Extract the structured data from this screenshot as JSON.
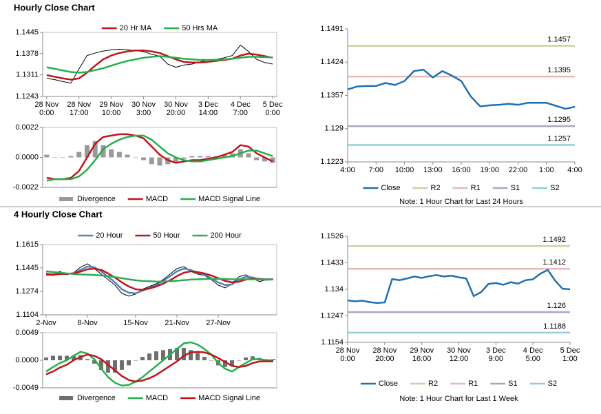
{
  "chart_data": [
    {
      "type": "line",
      "title": "Hourly Close Chart",
      "categories": [
        [
          "28 Nov",
          "0:00"
        ],
        null,
        null,
        null,
        [
          "28 Nov",
          "17:00"
        ],
        null,
        null,
        null,
        [
          "29 Nov",
          "10:00"
        ],
        null,
        null,
        null,
        [
          "30 Nov",
          "3:00"
        ],
        null,
        null,
        null,
        [
          "30 Nov",
          "20:00"
        ],
        null,
        null,
        null,
        [
          "3 Dec",
          "14:00"
        ],
        null,
        null,
        null,
        [
          "4 Dec",
          "7:00"
        ],
        null,
        null,
        null,
        [
          "5 Dec",
          "0:00"
        ]
      ],
      "ylim": [
        1.1243,
        1.1445
      ],
      "yticks": [
        1.1243,
        1.1311,
        1.1378,
        1.1445
      ],
      "grid": false,
      "series": [
        {
          "color": "#000000",
          "values": [
            1.13,
            1.1296,
            1.129,
            1.1285,
            1.133,
            1.1372,
            1.138,
            1.1386,
            1.139,
            1.1392,
            1.139,
            1.1388,
            1.1384,
            1.1376,
            1.137,
            1.1345,
            1.1335,
            1.1342,
            1.1345,
            1.1352,
            1.1358,
            1.136,
            1.1365,
            1.1372,
            1.1405,
            1.1385,
            1.136,
            1.135,
            1.1345
          ]
        },
        {
          "name": "20 Hr MA",
          "color": "#c0141b",
          "values": [
            1.131,
            1.1305,
            1.13,
            1.1296,
            1.13,
            1.1318,
            1.134,
            1.136,
            1.1372,
            1.138,
            1.1385,
            1.1388,
            1.1388,
            1.1385,
            1.138,
            1.137,
            1.136,
            1.1352,
            1.135,
            1.135,
            1.1352,
            1.1355,
            1.1358,
            1.1362,
            1.1372,
            1.1378,
            1.1375,
            1.137,
            1.1365
          ]
        },
        {
          "name": "50 Hrs MA",
          "color": "#22b04b",
          "values": [
            1.1335,
            1.133,
            1.1325,
            1.132,
            1.1318,
            1.132,
            1.1326,
            1.1332,
            1.134,
            1.1348,
            1.1355,
            1.136,
            1.1365,
            1.1368,
            1.137,
            1.1368,
            1.1365,
            1.1362,
            1.136,
            1.1358,
            1.1358,
            1.1358,
            1.136,
            1.1362,
            1.1365,
            1.1368,
            1.1368,
            1.1367,
            1.1366
          ]
        }
      ]
    },
    {
      "type": "line",
      "categories": [
        null,
        null,
        null,
        null,
        null,
        null,
        null,
        null,
        null,
        null,
        null,
        null,
        null,
        null,
        null,
        null,
        null,
        null,
        null,
        null,
        null,
        null,
        null,
        null,
        null,
        null,
        null,
        null,
        null
      ],
      "ylim": [
        -0.0022,
        0.0022
      ],
      "yticks": [
        {
          "value": -0.0022,
          "label": "-0.0022"
        },
        {
          "value": 0,
          "label": "0.0000"
        },
        {
          "value": 0.0022,
          "label": "0.0022"
        }
      ],
      "grid": false,
      "series": [
        {
          "name": "Divergence",
          "style": "bar",
          "color": "#9a9a9a",
          "values": [
            0.0002,
            0,
            0,
            0.0001,
            0.0004,
            0.0009,
            0.0012,
            0.0009,
            0.0006,
            0.0004,
            0.0002,
            0,
            -0.0002,
            -0.0005,
            -0.0006,
            -0.0005,
            -0.0004,
            -0.0001,
            0.0001,
            0.0001,
            0.0001,
            0.0001,
            0.0002,
            0.0003,
            0.0006,
            0.0003,
            -0.0002,
            -0.0003,
            -0.0004
          ]
        },
        {
          "name": "MACD",
          "color": "#c0141b",
          "values": [
            -0.0015,
            -0.0016,
            -0.0016,
            -0.0015,
            -0.001,
            0,
            0.001,
            0.0015,
            0.0016,
            0.0017,
            0.0017,
            0.0016,
            0.0014,
            0.0008,
            0.0002,
            -0.0002,
            -0.0004,
            -0.0003,
            -0.0002,
            -0.0002,
            -0.0001,
            0,
            0.0002,
            0.0004,
            0.0009,
            0.0008,
            0.0003,
            0,
            -0.0003
          ]
        },
        {
          "name": "MACD Signal Line",
          "color": "#22b04b",
          "values": [
            -0.0017,
            -0.0016,
            -0.0016,
            -0.0016,
            -0.0014,
            -0.0009,
            -0.0002,
            0.0006,
            0.001,
            0.0013,
            0.0015,
            0.0016,
            0.0016,
            0.0013,
            0.0008,
            0.0003,
            0,
            -0.0002,
            -0.0003,
            -0.0003,
            -0.0002,
            -0.0001,
            0,
            0.0001,
            0.0003,
            0.0005,
            0.0005,
            0.0003,
            0.0001
          ]
        }
      ]
    },
    {
      "type": "line",
      "note": "Note: 1 Hour Chart for Last 24 Hours",
      "categories": [
        "4:00",
        null,
        null,
        "7:00",
        null,
        null,
        "10:00",
        null,
        null,
        "13:00",
        null,
        null,
        "16:00",
        null,
        null,
        "19:00",
        null,
        null,
        "22:00",
        null,
        null,
        "1:00",
        null,
        null,
        "4:00"
      ],
      "ylim": [
        1.1223,
        1.1491
      ],
      "yticks": [
        1.1223,
        1.129,
        1.1357,
        1.1424,
        1.1491
      ],
      "grid": false,
      "series": [
        {
          "name": "Close",
          "color": "#1f6fb4",
          "values": [
            1.1369,
            1.1375,
            1.1376,
            1.1376,
            1.1382,
            1.1378,
            1.1386,
            1.1406,
            1.1409,
            1.1393,
            1.1406,
            1.1397,
            1.1386,
            1.1355,
            1.1335,
            1.1337,
            1.1338,
            1.134,
            1.1338,
            1.1342,
            1.1342,
            1.1342,
            1.1336,
            1.133,
            1.1334
          ]
        }
      ],
      "reference_lines": [
        {
          "name": "R2",
          "value": 1.1457,
          "color": "#c3d69b"
        },
        {
          "name": "R1",
          "value": 1.1395,
          "color": "#e6b9b8"
        },
        {
          "name": "S1",
          "value": 1.1295,
          "color": "#b3a2c7"
        },
        {
          "name": "S2",
          "value": 1.1257,
          "color": "#93cddd"
        }
      ]
    },
    {
      "type": "line",
      "title": "4 Hourly Close Chart",
      "categories": [
        "2-Nov",
        null,
        null,
        null,
        null,
        null,
        "8-Nov",
        null,
        null,
        null,
        null,
        null,
        null,
        "15-Nov",
        null,
        null,
        null,
        null,
        null,
        "21-Nov",
        null,
        null,
        null,
        null,
        null,
        "27-Nov",
        null,
        null,
        null,
        null,
        null,
        null,
        null,
        null
      ],
      "ylim": [
        1.1104,
        1.1615
      ],
      "yticks": [
        1.1104,
        1.1274,
        1.1445,
        1.1615
      ],
      "grid": false,
      "series": [
        {
          "color": "#000000",
          "values": [
            1.14,
            1.139,
            1.142,
            1.1395,
            1.141,
            1.145,
            1.1475,
            1.144,
            1.14,
            1.136,
            1.132,
            1.126,
            1.124,
            1.1255,
            1.129,
            1.131,
            1.133,
            1.136,
            1.14,
            1.144,
            1.1455,
            1.142,
            1.14,
            1.139,
            1.136,
            1.132,
            1.13,
            1.133,
            1.138,
            1.1395,
            1.137,
            1.1345,
            1.136,
            1.1365
          ]
        },
        {
          "name": "20 Hour",
          "color": "#4f81bd",
          "values": [
            1.1405,
            1.1398,
            1.1405,
            1.1402,
            1.1405,
            1.143,
            1.1455,
            1.145,
            1.142,
            1.138,
            1.134,
            1.129,
            1.1265,
            1.126,
            1.128,
            1.13,
            1.132,
            1.135,
            1.1385,
            1.142,
            1.144,
            1.143,
            1.141,
            1.1395,
            1.137,
            1.134,
            1.132,
            1.1325,
            1.136,
            1.138,
            1.1375,
            1.136,
            1.1358,
            1.1362
          ]
        },
        {
          "name": "50 Hour",
          "color": "#c0141b",
          "values": [
            1.1395,
            1.1395,
            1.14,
            1.1402,
            1.1405,
            1.1418,
            1.1435,
            1.144,
            1.143,
            1.1405,
            1.1375,
            1.134,
            1.131,
            1.129,
            1.1285,
            1.1295,
            1.131,
            1.133,
            1.1355,
            1.1385,
            1.141,
            1.142,
            1.1415,
            1.1405,
            1.139,
            1.137,
            1.135,
            1.134,
            1.1345,
            1.136,
            1.1368,
            1.1365,
            1.1362,
            1.1362
          ]
        },
        {
          "name": "200 Hour",
          "color": "#2dab4f",
          "values": [
            1.142,
            1.1415,
            1.141,
            1.1405,
            1.14,
            1.1398,
            1.1396,
            1.1394,
            1.139,
            1.1385,
            1.1378,
            1.137,
            1.1362,
            1.1355,
            1.135,
            1.1348,
            1.1346,
            1.1346,
            1.1348,
            1.1352,
            1.1356,
            1.136,
            1.1362,
            1.1364,
            1.1365,
            1.1365,
            1.1364,
            1.1362,
            1.1362,
            1.1362,
            1.1362,
            1.1362,
            1.1362,
            1.1362
          ]
        }
      ]
    },
    {
      "type": "line",
      "categories": [
        null,
        null,
        null,
        null,
        null,
        null,
        null,
        null,
        null,
        null,
        null,
        null,
        null,
        null,
        null,
        null,
        null,
        null,
        null,
        null,
        null,
        null,
        null,
        null,
        null,
        null,
        null,
        null,
        null,
        null,
        null,
        null,
        null,
        null
      ],
      "ylim": [
        -0.0049,
        0.0049
      ],
      "yticks": [
        {
          "value": -0.0049,
          "label": "-0.0049"
        },
        {
          "value": 0,
          "label": "0.0000"
        },
        {
          "value": 0.0049,
          "label": "0.0049"
        }
      ],
      "grid": false,
      "series": [
        {
          "name": "Divergence",
          "style": "bar",
          "color": "#6f6f6f",
          "values": [
            0.0005,
            0.0008,
            0.0008,
            0.0008,
            0.0008,
            0.0009,
            0.0002,
            -0.0006,
            -0.0017,
            -0.0022,
            -0.0022,
            -0.0017,
            -0.0009,
            0,
            0.0006,
            0.0012,
            0.0016,
            0.0018,
            0.002,
            0.0022,
            0.0022,
            0.0018,
            0.0013,
            0.0006,
            0,
            -0.0009,
            -0.0012,
            -0.001,
            0,
            0.0005,
            0.0007,
            0.0004,
            0.0002,
            0.0002
          ]
        },
        {
          "name": "MACD",
          "color": "#22b04b",
          "values": [
            -0.002,
            -0.0012,
            -0.0005,
            0,
            0.0008,
            0.0015,
            0.0012,
            0.0002,
            -0.0015,
            -0.003,
            -0.004,
            -0.0045,
            -0.0044,
            -0.0038,
            -0.003,
            -0.002,
            -0.001,
            0,
            0.001,
            0.002,
            0.003,
            0.0032,
            0.0028,
            0.002,
            0.001,
            -0.0005,
            -0.0015,
            -0.002,
            -0.0012,
            -0.0005,
            0.0002,
            0.0002,
            0,
            0
          ]
        },
        {
          "name": "MACD Signal Line",
          "color": "#c0141b",
          "values": [
            -0.0025,
            -0.002,
            -0.0013,
            -0.0008,
            0,
            0.0006,
            0.001,
            0.0008,
            0.0002,
            -0.0008,
            -0.0018,
            -0.0028,
            -0.0035,
            -0.0038,
            -0.0036,
            -0.0032,
            -0.0026,
            -0.0018,
            -0.001,
            -0.0002,
            0.0008,
            0.0014,
            0.0015,
            0.0014,
            0.001,
            0.0004,
            -0.0003,
            -0.001,
            -0.0012,
            -0.001,
            -0.0005,
            -0.0002,
            -0.0002,
            -0.0002
          ]
        }
      ]
    },
    {
      "type": "line",
      "note": "Note: 1 Hour Chart for Last 1 Week",
      "categories": [
        [
          "28 Nov",
          "0:00"
        ],
        null,
        null,
        null,
        null,
        [
          "28 Nov",
          "20:00"
        ],
        null,
        null,
        null,
        null,
        [
          "29 Nov",
          "16:00"
        ],
        null,
        null,
        null,
        null,
        [
          "30 Nov",
          "12:00"
        ],
        null,
        null,
        null,
        null,
        [
          "3 Dec",
          "9:00"
        ],
        null,
        null,
        null,
        null,
        [
          "4 Dec",
          "5:00"
        ],
        null,
        null,
        null,
        null,
        [
          "5 Dec",
          "1:00"
        ]
      ],
      "ylim": [
        1.1154,
        1.1526
      ],
      "yticks": [
        1.1154,
        1.1247,
        1.134,
        1.1433,
        1.1526
      ],
      "grid": false,
      "series": [
        {
          "name": "Close",
          "color": "#1f6fb4",
          "values": [
            1.1301,
            1.1298,
            1.13,
            1.1295,
            1.1292,
            1.1294,
            1.1376,
            1.1372,
            1.1378,
            1.1385,
            1.138,
            1.1386,
            1.139,
            1.1385,
            1.1388,
            1.1382,
            1.1378,
            1.1316,
            1.133,
            1.1359,
            1.1362,
            1.1356,
            1.1365,
            1.136,
            1.1372,
            1.1375,
            1.1395,
            1.1408,
            1.137,
            1.1342,
            1.134
          ]
        }
      ],
      "reference_lines": [
        {
          "name": "R2",
          "value": 1.1492,
          "color": "#c3d69b"
        },
        {
          "name": "R1",
          "value": 1.1412,
          "color": "#e6b9b8"
        },
        {
          "name": "S1",
          "value": 1.126,
          "color": "#b3a2c7"
        },
        {
          "name": "S2",
          "value": 1.1188,
          "color": "#93cddd"
        }
      ]
    }
  ]
}
